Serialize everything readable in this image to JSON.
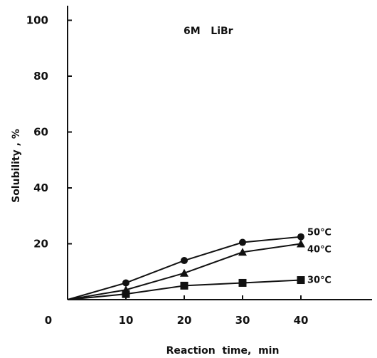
{
  "chart_data": {
    "type": "line",
    "title": "",
    "annotation": "6M   LiBr",
    "xlabel": "Reaction  time,  min",
    "ylabel": "Solubility , %",
    "xlim": [
      0,
      50
    ],
    "ylim": [
      0,
      100
    ],
    "x_ticks": [
      0,
      10,
      20,
      30,
      40
    ],
    "x_tick_labels": [
      "0",
      "10",
      "20",
      "30",
      "40"
    ],
    "y_ticks": [
      20,
      40,
      60,
      80,
      100
    ],
    "y_tick_labels": [
      "20",
      "40",
      "60",
      "80",
      "100"
    ],
    "grid": false,
    "legend": "none",
    "series": [
      {
        "name": "50℃",
        "marker": "circle",
        "x": [
          0,
          10,
          20,
          30,
          40
        ],
        "y": [
          0,
          6,
          14,
          20.5,
          22.5
        ]
      },
      {
        "name": "40℃",
        "marker": "triangle",
        "x": [
          0,
          10,
          20,
          30,
          40
        ],
        "y": [
          0,
          3.5,
          9.5,
          17,
          20
        ]
      },
      {
        "name": "30℃",
        "marker": "square",
        "x": [
          0,
          10,
          20,
          30,
          40
        ],
        "y": [
          0,
          2,
          5,
          6,
          7
        ]
      }
    ]
  }
}
